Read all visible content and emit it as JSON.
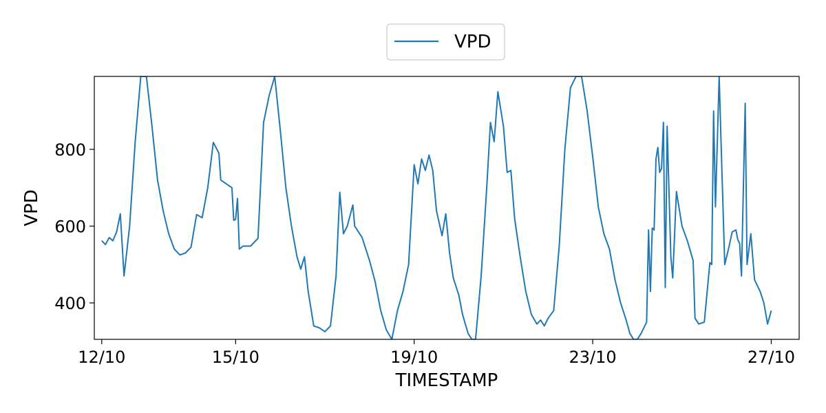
{
  "chart_data": {
    "type": "line",
    "title": "",
    "xlabel": "TIMESTAMP",
    "ylabel": "VPD",
    "legend": {
      "placement": "top-center",
      "entries": [
        "VPD"
      ]
    },
    "grid": false,
    "xlim": [
      "2023-10-11T20:00",
      "2023-10-27T15:00"
    ],
    "ylim": [
      305,
      990
    ],
    "x_ticks": [
      {
        "date": "2023-10-12T00:00",
        "label": "12/10"
      },
      {
        "date": "2023-10-15T00:00",
        "label": "15/10"
      },
      {
        "date": "2023-10-19T00:00",
        "label": "19/10"
      },
      {
        "date": "2023-10-23T00:00",
        "label": "23/10"
      },
      {
        "date": "2023-10-27T00:00",
        "label": "27/10"
      }
    ],
    "y_ticks": [
      400,
      600,
      800
    ],
    "colors": {
      "series": "#1f77b4"
    },
    "series": [
      {
        "name": "VPD",
        "points": [
          [
            "2023-10-12T00:00",
            562
          ],
          [
            "2023-10-12T02:00",
            552
          ],
          [
            "2023-10-12T04:00",
            570
          ],
          [
            "2023-10-12T06:00",
            562
          ],
          [
            "2023-10-12T08:00",
            585
          ],
          [
            "2023-10-12T10:00",
            632
          ],
          [
            "2023-10-12T12:00",
            470
          ],
          [
            "2023-10-12T15:00",
            600
          ],
          [
            "2023-10-12T18:00",
            820
          ],
          [
            "2023-10-12T21:00",
            990
          ],
          [
            "2023-10-13T00:00",
            990
          ],
          [
            "2023-10-13T03:00",
            860
          ],
          [
            "2023-10-13T06:00",
            720
          ],
          [
            "2023-10-13T09:00",
            640
          ],
          [
            "2023-10-13T12:00",
            580
          ],
          [
            "2023-10-13T15:00",
            540
          ],
          [
            "2023-10-13T18:00",
            525
          ],
          [
            "2023-10-13T21:00",
            530
          ],
          [
            "2023-10-14T00:00",
            545
          ],
          [
            "2023-10-14T03:00",
            630
          ],
          [
            "2023-10-14T06:00",
            622
          ],
          [
            "2023-10-14T09:00",
            700
          ],
          [
            "2023-10-14T12:00",
            818
          ],
          [
            "2023-10-14T15:00",
            790
          ],
          [
            "2023-10-14T16:00",
            720
          ],
          [
            "2023-10-14T22:00",
            700
          ],
          [
            "2023-10-14T23:00",
            615
          ],
          [
            "2023-10-15T00:00",
            618
          ],
          [
            "2023-10-15T01:00",
            672
          ],
          [
            "2023-10-15T02:00",
            540
          ],
          [
            "2023-10-15T04:00",
            548
          ],
          [
            "2023-10-15T08:00",
            548
          ],
          [
            "2023-10-15T12:00",
            568
          ],
          [
            "2023-10-15T15:00",
            870
          ],
          [
            "2023-10-15T18:00",
            940
          ],
          [
            "2023-10-15T21:00",
            990
          ],
          [
            "2023-10-16T00:00",
            850
          ],
          [
            "2023-10-16T03:00",
            700
          ],
          [
            "2023-10-16T06:00",
            600
          ],
          [
            "2023-10-16T09:00",
            520
          ],
          [
            "2023-10-16T11:00",
            488
          ],
          [
            "2023-10-16T13:00",
            520
          ],
          [
            "2023-10-16T15:00",
            430
          ],
          [
            "2023-10-16T18:00",
            340
          ],
          [
            "2023-10-16T21:00",
            335
          ],
          [
            "2023-10-17T00:00",
            325
          ],
          [
            "2023-10-17T03:00",
            340
          ],
          [
            "2023-10-17T06:00",
            470
          ],
          [
            "2023-10-17T08:00",
            688
          ],
          [
            "2023-10-17T10:00",
            580
          ],
          [
            "2023-10-17T12:00",
            600
          ],
          [
            "2023-10-17T15:00",
            655
          ],
          [
            "2023-10-17T16:00",
            600
          ],
          [
            "2023-10-17T20:00",
            570
          ],
          [
            "2023-10-18T00:00",
            510
          ],
          [
            "2023-10-18T03:00",
            455
          ],
          [
            "2023-10-18T06:00",
            380
          ],
          [
            "2023-10-18T09:00",
            330
          ],
          [
            "2023-10-18T12:00",
            305
          ],
          [
            "2023-10-18T15:00",
            380
          ],
          [
            "2023-10-18T18:00",
            430
          ],
          [
            "2023-10-18T21:00",
            500
          ],
          [
            "2023-10-19T00:00",
            760
          ],
          [
            "2023-10-19T02:00",
            710
          ],
          [
            "2023-10-19T04:00",
            775
          ],
          [
            "2023-10-19T06:00",
            745
          ],
          [
            "2023-10-19T08:00",
            785
          ],
          [
            "2023-10-19T10:00",
            745
          ],
          [
            "2023-10-19T12:00",
            640
          ],
          [
            "2023-10-19T15:00",
            575
          ],
          [
            "2023-10-19T17:00",
            632
          ],
          [
            "2023-10-19T19:00",
            530
          ],
          [
            "2023-10-19T21:00",
            465
          ],
          [
            "2023-10-20T00:00",
            420
          ],
          [
            "2023-10-20T02:00",
            370
          ],
          [
            "2023-10-20T05:00",
            320
          ],
          [
            "2023-10-20T07:00",
            305
          ],
          [
            "2023-10-20T09:00",
            305
          ],
          [
            "2023-10-20T12:00",
            470
          ],
          [
            "2023-10-20T15:00",
            700
          ],
          [
            "2023-10-20T17:00",
            870
          ],
          [
            "2023-10-20T19:00",
            820
          ],
          [
            "2023-10-20T21:00",
            950
          ],
          [
            "2023-10-21T00:00",
            860
          ],
          [
            "2023-10-21T02:00",
            740
          ],
          [
            "2023-10-21T04:00",
            745
          ],
          [
            "2023-10-21T06:00",
            620
          ],
          [
            "2023-10-21T09:00",
            520
          ],
          [
            "2023-10-21T12:00",
            430
          ],
          [
            "2023-10-21T15:00",
            370
          ],
          [
            "2023-10-21T18:00",
            345
          ],
          [
            "2023-10-21T20:00",
            355
          ],
          [
            "2023-10-21T22:00",
            340
          ],
          [
            "2023-10-22T00:00",
            360
          ],
          [
            "2023-10-22T03:00",
            380
          ],
          [
            "2023-10-22T06:00",
            550
          ],
          [
            "2023-10-22T09:00",
            800
          ],
          [
            "2023-10-22T12:00",
            960
          ],
          [
            "2023-10-22T15:00",
            990
          ],
          [
            "2023-10-22T18:00",
            990
          ],
          [
            "2023-10-22T21:00",
            900
          ],
          [
            "2023-10-23T00:00",
            780
          ],
          [
            "2023-10-23T03:00",
            650
          ],
          [
            "2023-10-23T06:00",
            580
          ],
          [
            "2023-10-23T09:00",
            540
          ],
          [
            "2023-10-23T12:00",
            460
          ],
          [
            "2023-10-23T15:00",
            400
          ],
          [
            "2023-10-23T18:00",
            355
          ],
          [
            "2023-10-23T20:00",
            320
          ],
          [
            "2023-10-23T22:00",
            305
          ],
          [
            "2023-10-24T00:00",
            305
          ],
          [
            "2023-10-24T02:00",
            320
          ],
          [
            "2023-10-24T04:00",
            340
          ],
          [
            "2023-10-24T05:00",
            350
          ],
          [
            "2023-10-24T06:00",
            590
          ],
          [
            "2023-10-24T07:00",
            430
          ],
          [
            "2023-10-24T08:00",
            595
          ],
          [
            "2023-10-24T09:00",
            590
          ],
          [
            "2023-10-24T10:00",
            775
          ],
          [
            "2023-10-24T11:00",
            805
          ],
          [
            "2023-10-24T12:00",
            740
          ],
          [
            "2023-10-24T13:00",
            750
          ],
          [
            "2023-10-24T14:00",
            870
          ],
          [
            "2023-10-24T15:00",
            440
          ],
          [
            "2023-10-24T16:00",
            860
          ],
          [
            "2023-10-24T18:00",
            520
          ],
          [
            "2023-10-24T19:00",
            465
          ],
          [
            "2023-10-24T21:00",
            690
          ],
          [
            "2023-10-25T00:00",
            600
          ],
          [
            "2023-10-25T03:00",
            560
          ],
          [
            "2023-10-25T06:00",
            510
          ],
          [
            "2023-10-25T07:00",
            360
          ],
          [
            "2023-10-25T09:00",
            345
          ],
          [
            "2023-10-25T12:00",
            350
          ],
          [
            "2023-10-25T15:00",
            505
          ],
          [
            "2023-10-25T16:00",
            500
          ],
          [
            "2023-10-25T17:00",
            900
          ],
          [
            "2023-10-25T18:00",
            650
          ],
          [
            "2023-10-25T20:00",
            990
          ],
          [
            "2023-10-25T21:00",
            820
          ],
          [
            "2023-10-25T23:00",
            500
          ],
          [
            "2023-10-26T01:00",
            540
          ],
          [
            "2023-10-26T03:00",
            585
          ],
          [
            "2023-10-26T05:00",
            590
          ],
          [
            "2023-10-26T06:00",
            565
          ],
          [
            "2023-10-26T07:00",
            555
          ],
          [
            "2023-10-26T08:00",
            470
          ],
          [
            "2023-10-26T10:00",
            920
          ],
          [
            "2023-10-26T11:00",
            500
          ],
          [
            "2023-10-26T13:00",
            580
          ],
          [
            "2023-10-26T15:00",
            460
          ],
          [
            "2023-10-26T18:00",
            430
          ],
          [
            "2023-10-26T20:00",
            400
          ],
          [
            "2023-10-26T22:00",
            345
          ],
          [
            "2023-10-27T00:00",
            380
          ]
        ]
      }
    ]
  }
}
